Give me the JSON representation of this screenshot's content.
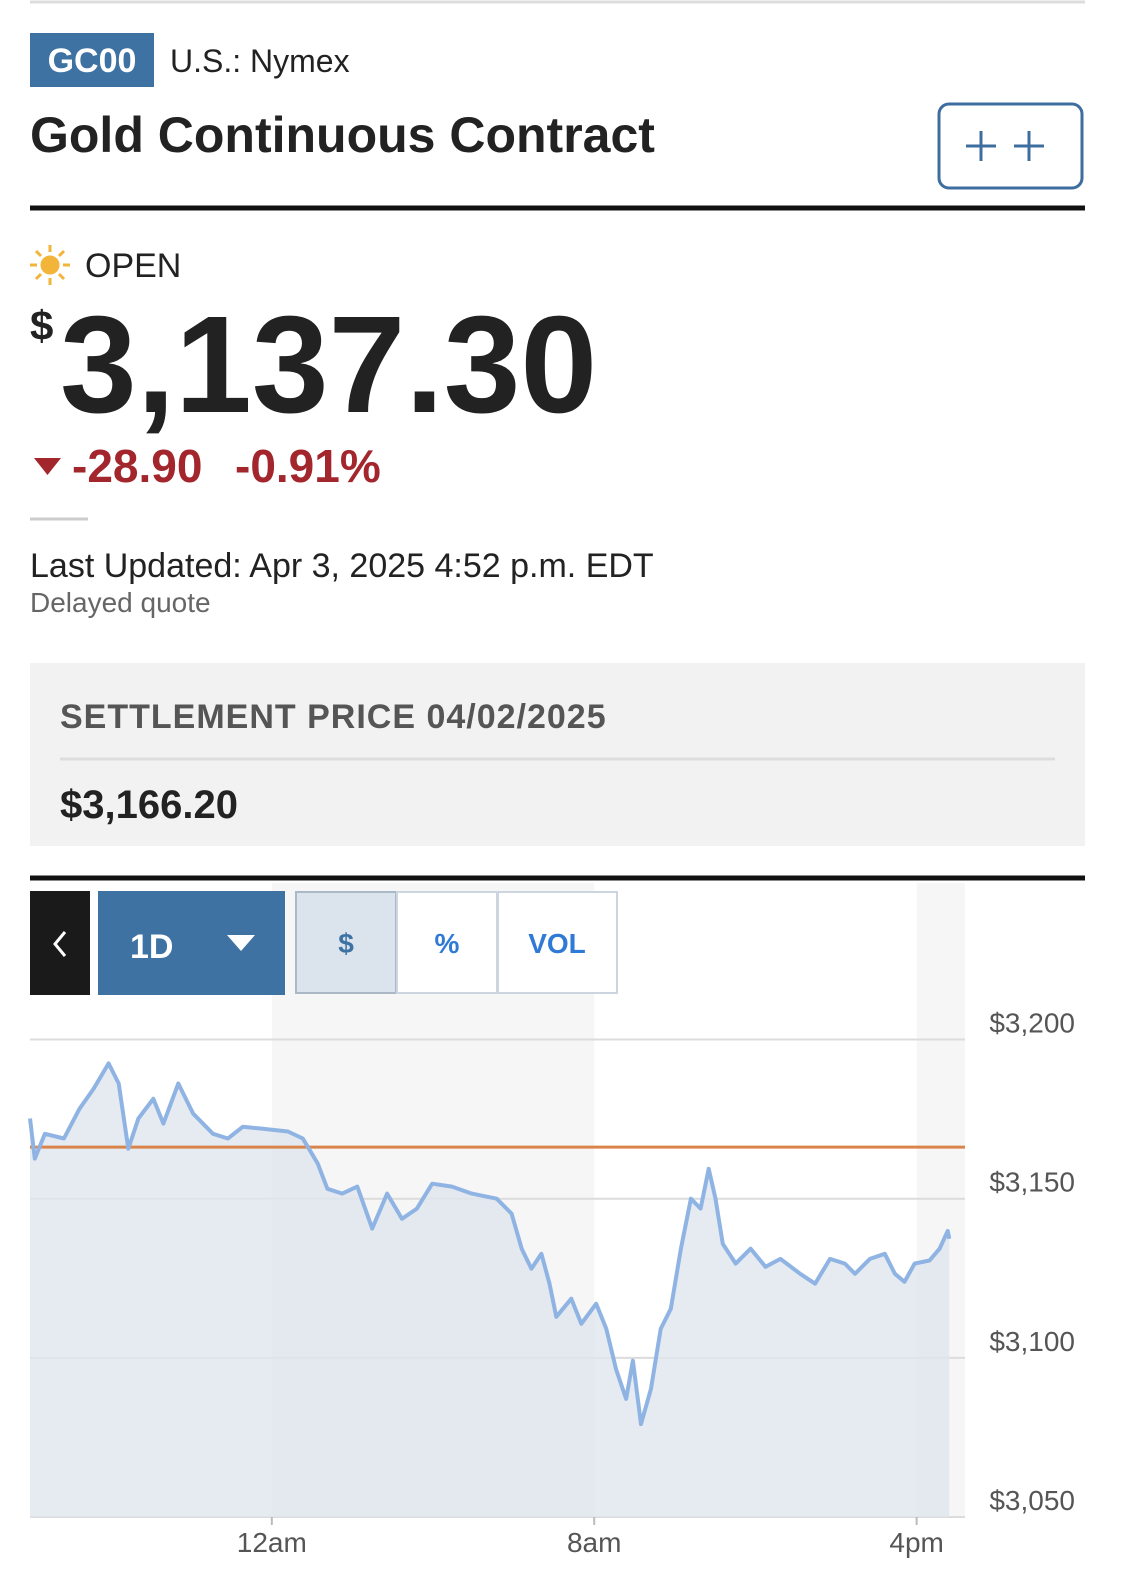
{
  "header": {
    "ticker": "GC00",
    "exchange": "U.S.: Nymex",
    "title": "Gold Continuous Contract"
  },
  "status": {
    "label": "OPEN"
  },
  "quote": {
    "currency": "$",
    "price": "3,137.30",
    "change": "-28.90",
    "change_percent": "-0.91%",
    "last_updated": "Last Updated: Apr 3, 2025 4:52 p.m. EDT",
    "delayed": "Delayed quote"
  },
  "settlement": {
    "label": "SETTLEMENT PRICE 04/02/2025",
    "value": "$3,166.20"
  },
  "controls": {
    "range": "1D",
    "tabs": [
      "$",
      "%",
      "VOL"
    ]
  },
  "chart_data": {
    "type": "line",
    "color": "#8fb4e3",
    "fill": "#dfe6ee",
    "grid": true,
    "x": [
      -6,
      -5.88,
      -5.63,
      -5.16,
      -4.77,
      -4.42,
      -4.05,
      -3.8,
      -3.56,
      -3.31,
      -2.94,
      -2.69,
      -2.32,
      -1.95,
      -1.46,
      -1.09,
      -0.72,
      -0.22,
      0.4,
      0.77,
      1.14,
      1.38,
      1.75,
      2.12,
      2.49,
      2.86,
      3.23,
      3.6,
      3.98,
      4.47,
      4.96,
      5.58,
      5.95,
      6.2,
      6.44,
      6.69,
      6.89,
      7.06,
      7.43,
      7.68,
      8.05,
      8.3,
      8.54,
      8.79,
      8.96,
      9.16,
      9.41,
      9.65,
      9.9,
      10.15,
      10.4,
      10.64,
      10.84,
      11.01,
      11.19,
      11.51,
      11.88,
      12.25,
      12.62,
      13.11,
      13.48,
      13.85,
      14.22,
      14.47,
      14.84,
      15.21,
      15.46,
      15.7,
      15.95,
      16.32,
      16.57,
      16.77,
      16.81
    ],
    "values": [
      3175.2,
      3162.6,
      3170.4,
      3168.9,
      3178.3,
      3184.6,
      3192.5,
      3186.2,
      3165.7,
      3175.2,
      3181.4,
      3173.6,
      3186.2,
      3176.7,
      3170.4,
      3168.9,
      3172.6,
      3172.0,
      3171.1,
      3168.9,
      3161.0,
      3153.1,
      3151.6,
      3153.8,
      3140.6,
      3151.6,
      3143.7,
      3146.9,
      3154.7,
      3153.8,
      3151.6,
      3150.0,
      3145.3,
      3134.3,
      3128.0,
      3132.7,
      3123.3,
      3112.9,
      3118.6,
      3110.7,
      3117.0,
      3109.1,
      3096.5,
      3087.1,
      3099.1,
      3079.2,
      3090.3,
      3109.1,
      3115.4,
      3134.3,
      3150.0,
      3146.9,
      3159.4,
      3150.0,
      3135.8,
      3129.6,
      3134.3,
      3128.6,
      3131.1,
      3126.4,
      3123.3,
      3131.1,
      3129.6,
      3126.4,
      3131.1,
      3132.7,
      3126.4,
      3123.9,
      3129.6,
      3130.6,
      3134.3,
      3139.9,
      3137.4
    ],
    "reference_line": {
      "value": 3166.2,
      "color": "#d9844a"
    },
    "xlim": [
      -6,
      17.2
    ],
    "xticks": [
      {
        "value": 0,
        "label": "12am"
      },
      {
        "value": 8,
        "label": "8am"
      },
      {
        "value": 16,
        "label": "4pm"
      }
    ],
    "ylim": [
      3050,
      3214
    ],
    "yticks": [
      {
        "value": 3050,
        "label": "$3,050"
      },
      {
        "value": 3100,
        "label": "$3,100"
      },
      {
        "value": 3150,
        "label": "$3,150"
      },
      {
        "value": 3200,
        "label": "$3,200"
      }
    ]
  }
}
